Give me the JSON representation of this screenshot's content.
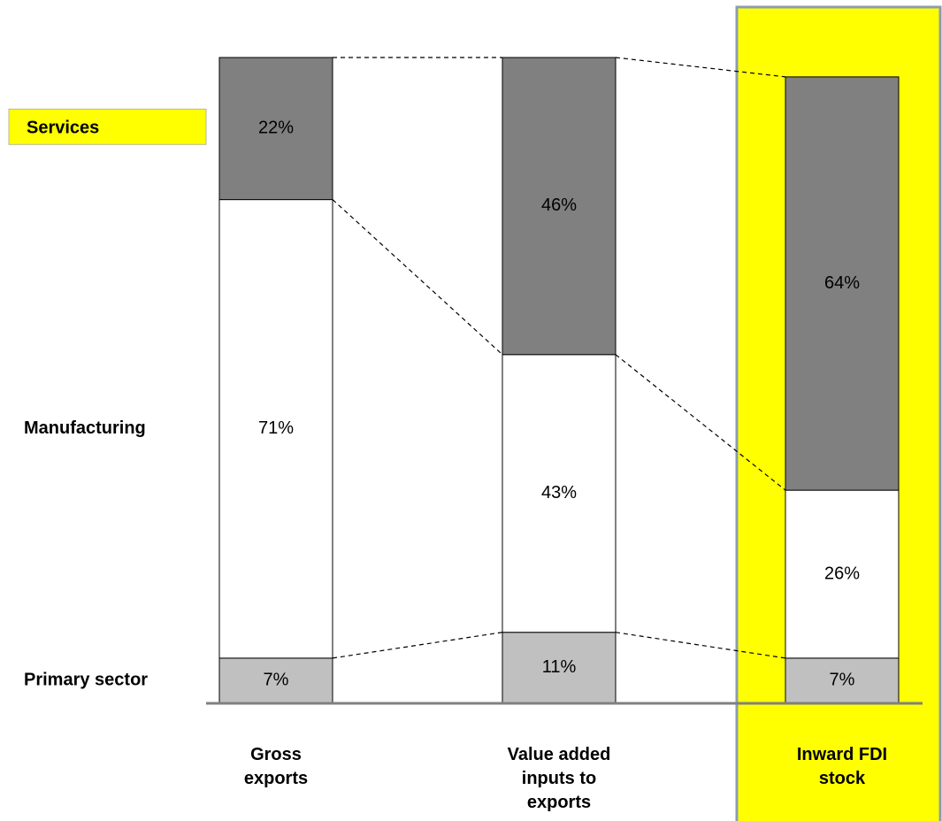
{
  "chart_data": {
    "type": "stacked_bar",
    "categories": [
      "Gross exports",
      "Value added inputs to exports",
      "Inward FDI stock"
    ],
    "series": [
      {
        "name": "Primary sector",
        "color": "#c0c0c0",
        "values": [
          7,
          11,
          7
        ],
        "value_labels": [
          "7%",
          "11%",
          "7%"
        ]
      },
      {
        "name": "Manufacturing",
        "color": "#ffffff",
        "values": [
          71,
          43,
          26
        ],
        "value_labels": [
          "71%",
          "43%",
          "26%"
        ]
      },
      {
        "name": "Services",
        "color": "#808080",
        "values": [
          22,
          46,
          64
        ],
        "value_labels": [
          "22%",
          "46%",
          "64%"
        ]
      }
    ],
    "ylim": [
      0,
      100
    ],
    "highlight_category": 2,
    "highlight_series": 2
  }
}
